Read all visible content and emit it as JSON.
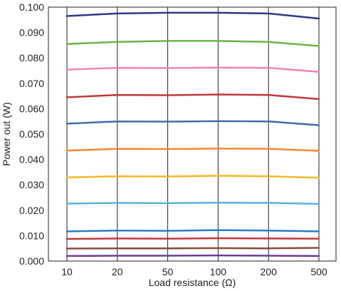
{
  "chart_data": {
    "type": "line",
    "title": "",
    "xlabel": "Load resistance (Ω)",
    "ylabel": "Power out (W)",
    "categories": [
      "10",
      "20",
      "50",
      "100",
      "200",
      "500"
    ],
    "ylim": [
      0,
      0.1
    ],
    "y_ticks": [
      "0.000",
      "0.010",
      "0.020",
      "0.030",
      "0.040",
      "0.050",
      "0.060",
      "0.070",
      "0.080",
      "0.090",
      "0.100"
    ],
    "grid": "vertical",
    "series": [
      {
        "color": "#2e3a87",
        "values": [
          0.0965,
          0.0975,
          0.0978,
          0.0978,
          0.0975,
          0.0955
        ]
      },
      {
        "color": "#6ab446",
        "values": [
          0.0855,
          0.0863,
          0.0867,
          0.0867,
          0.0863,
          0.0847
        ]
      },
      {
        "color": "#ee83b8",
        "values": [
          0.0754,
          0.0761,
          0.076,
          0.0762,
          0.0761,
          0.0745
        ]
      },
      {
        "color": "#c0393b",
        "values": [
          0.0645,
          0.0654,
          0.0653,
          0.0656,
          0.0654,
          0.0638
        ]
      },
      {
        "color": "#3e6fac",
        "values": [
          0.0541,
          0.055,
          0.0549,
          0.0551,
          0.055,
          0.0535
        ]
      },
      {
        "color": "#ee8a3b",
        "values": [
          0.0435,
          0.0442,
          0.0441,
          0.0443,
          0.0442,
          0.0434
        ]
      },
      {
        "color": "#f3b92b",
        "values": [
          0.0329,
          0.0334,
          0.0333,
          0.0336,
          0.0334,
          0.0328
        ]
      },
      {
        "color": "#56b4e3",
        "values": [
          0.0226,
          0.0229,
          0.0228,
          0.023,
          0.0229,
          0.0225
        ]
      },
      {
        "color": "#2f7ec1",
        "values": [
          0.0117,
          0.012,
          0.0119,
          0.0122,
          0.012,
          0.0117
        ]
      },
      {
        "color": "#c0393b",
        "values": [
          0.0087,
          0.0089,
          0.0088,
          0.009,
          0.0089,
          0.0088
        ]
      },
      {
        "color": "#8b4b40",
        "values": [
          0.0049,
          0.005,
          0.005,
          0.0051,
          0.005,
          0.0052
        ]
      },
      {
        "color": "#6a3d9a",
        "values": [
          0.002,
          0.0021,
          0.0021,
          0.0022,
          0.0021,
          0.002
        ]
      }
    ]
  }
}
